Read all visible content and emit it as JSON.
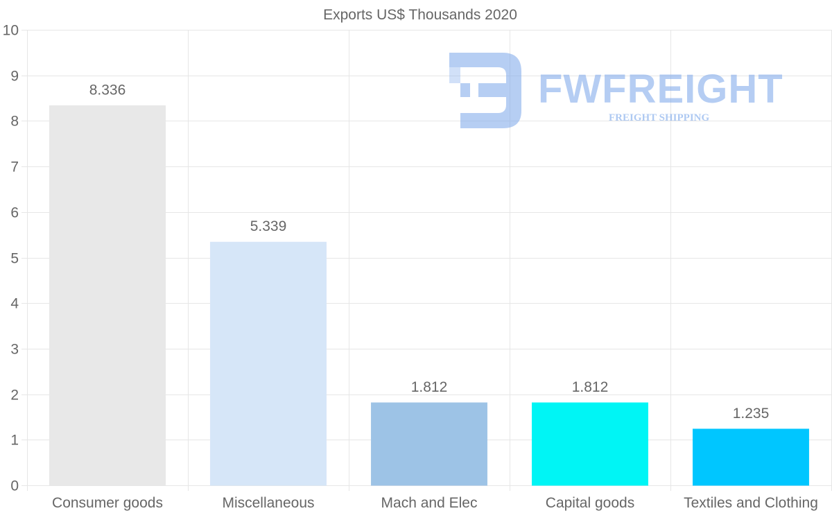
{
  "chart_data": {
    "type": "bar",
    "title": "Exports US$ Thousands 2020",
    "categories": [
      "Consumer goods",
      "Miscellaneous",
      "Mach and Elec",
      "Capital goods",
      "Textiles and Clothing"
    ],
    "values": [
      8.336,
      5.339,
      1.812,
      1.812,
      1.235
    ],
    "value_labels": [
      "8.336",
      "5.339",
      "1.812",
      "1.812",
      "1.235"
    ],
    "colors": [
      "#e8e8e8",
      "#d6e6f8",
      "#9dc3e6",
      "#00f5f5",
      "#00c6ff"
    ],
    "ylim": [
      0,
      10
    ],
    "yticks": [
      0,
      1,
      2,
      3,
      4,
      5,
      6,
      7,
      8,
      9,
      10
    ],
    "xlabel": "",
    "ylabel": "",
    "grid": true
  },
  "watermark": {
    "brand": "FWFREIGHT",
    "tagline": "FREIGHT SHIPPING",
    "color": "#7aa6ea"
  }
}
